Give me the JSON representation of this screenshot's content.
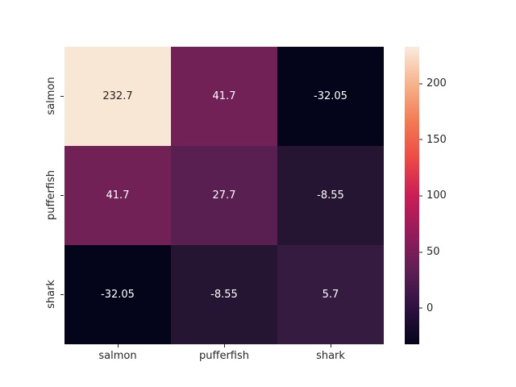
{
  "figure": {
    "background": "#ffffff",
    "text_color": "#262626"
  },
  "chart_data": {
    "type": "heatmap",
    "title": "",
    "categories": [
      "salmon",
      "pufferfish",
      "shark"
    ],
    "x_tick_labels": [
      "salmon",
      "pufferfish",
      "shark"
    ],
    "y_tick_labels": [
      "salmon",
      "pufferfish",
      "shark"
    ],
    "matrix": [
      [
        232.7,
        41.7,
        -32.05
      ],
      [
        41.7,
        27.7,
        -8.55
      ],
      [
        -32.05,
        -8.55,
        5.7
      ]
    ],
    "vmin": -32.05,
    "vmax": 232.7,
    "colormap": "rocket",
    "cells": [
      {
        "row": "salmon",
        "col": "salmon",
        "label": "232.7",
        "bg": "#f8e7d4",
        "fg": "#262626"
      },
      {
        "row": "salmon",
        "col": "pufferfish",
        "label": "41.7",
        "bg": "#722157",
        "fg": "#ffffff"
      },
      {
        "row": "salmon",
        "col": "shark",
        "label": "-32.05",
        "bg": "#04051b",
        "fg": "#ffffff"
      },
      {
        "row": "pufferfish",
        "col": "salmon",
        "label": "41.7",
        "bg": "#722157",
        "fg": "#ffffff"
      },
      {
        "row": "pufferfish",
        "col": "pufferfish",
        "label": "27.7",
        "bg": "#591f50",
        "fg": "#ffffff"
      },
      {
        "row": "pufferfish",
        "col": "shark",
        "label": "-8.55",
        "bg": "#251532",
        "fg": "#ffffff"
      },
      {
        "row": "shark",
        "col": "salmon",
        "label": "-32.05",
        "bg": "#04051b",
        "fg": "#ffffff"
      },
      {
        "row": "shark",
        "col": "pufferfish",
        "label": "-8.55",
        "bg": "#251532",
        "fg": "#ffffff"
      },
      {
        "row": "shark",
        "col": "shark",
        "label": "5.7",
        "bg": "#361b41",
        "fg": "#ffffff"
      }
    ],
    "colorbar": {
      "tick_labels": [
        "200",
        "150",
        "100",
        "50",
        "0"
      ],
      "tick_values": [
        200,
        150,
        100,
        50,
        0
      ],
      "gradient": [
        {
          "color": "#faebdd",
          "pos": "0%"
        },
        {
          "color": "#f6b189",
          "pos": "13%"
        },
        {
          "color": "#f37b53",
          "pos": "25%"
        },
        {
          "color": "#ee4c45",
          "pos": "37%"
        },
        {
          "color": "#cb1d56",
          "pos": "50%"
        },
        {
          "color": "#941c5b",
          "pos": "63%"
        },
        {
          "color": "#5f1f55",
          "pos": "75%"
        },
        {
          "color": "#2c1140",
          "pos": "88%"
        },
        {
          "color": "#03051a",
          "pos": "100%"
        }
      ]
    },
    "legend_position": "right-colorbar",
    "grid": false
  }
}
